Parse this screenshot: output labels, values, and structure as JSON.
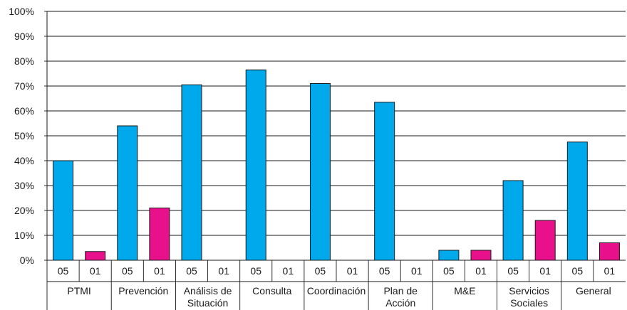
{
  "chart_data": {
    "type": "bar",
    "y_ticks": [
      "0%",
      "10%",
      "20%",
      "30%",
      "40%",
      "50%",
      "60%",
      "70%",
      "80%",
      "90%",
      "100%"
    ],
    "ylim": [
      0,
      100
    ],
    "grid": true,
    "categories": [
      {
        "label_lines": [
          "PTMI"
        ],
        "bars": [
          {
            "sub": "05",
            "value": 40
          },
          {
            "sub": "01",
            "value": 3.5
          }
        ]
      },
      {
        "label_lines": [
          "Prevención"
        ],
        "bars": [
          {
            "sub": "05",
            "value": 54
          },
          {
            "sub": "01",
            "value": 21
          }
        ]
      },
      {
        "label_lines": [
          "Análisis de",
          "Situación"
        ],
        "bars": [
          {
            "sub": "05",
            "value": 70.5
          },
          {
            "sub": "01",
            "value": 0
          }
        ]
      },
      {
        "label_lines": [
          "Consulta"
        ],
        "bars": [
          {
            "sub": "05",
            "value": 76.5
          },
          {
            "sub": "01",
            "value": 0
          }
        ]
      },
      {
        "label_lines": [
          "Coordinación"
        ],
        "bars": [
          {
            "sub": "05",
            "value": 71
          },
          {
            "sub": "01",
            "value": 0
          }
        ]
      },
      {
        "label_lines": [
          "Plan de",
          "Acción"
        ],
        "bars": [
          {
            "sub": "05",
            "value": 63.5
          },
          {
            "sub": "01",
            "value": 0
          }
        ]
      },
      {
        "label_lines": [
          "M&E"
        ],
        "bars": [
          {
            "sub": "05",
            "value": 4
          },
          {
            "sub": "01",
            "value": 4
          }
        ]
      },
      {
        "label_lines": [
          "Servicios",
          "Sociales"
        ],
        "bars": [
          {
            "sub": "05",
            "value": 32
          },
          {
            "sub": "01",
            "value": 16
          }
        ]
      },
      {
        "label_lines": [
          "General"
        ],
        "bars": [
          {
            "sub": "05",
            "value": 47.5
          },
          {
            "sub": "01",
            "value": 7
          }
        ]
      }
    ],
    "series_colors": {
      "05": "#00a8ec",
      "01": "#e8118b"
    }
  }
}
